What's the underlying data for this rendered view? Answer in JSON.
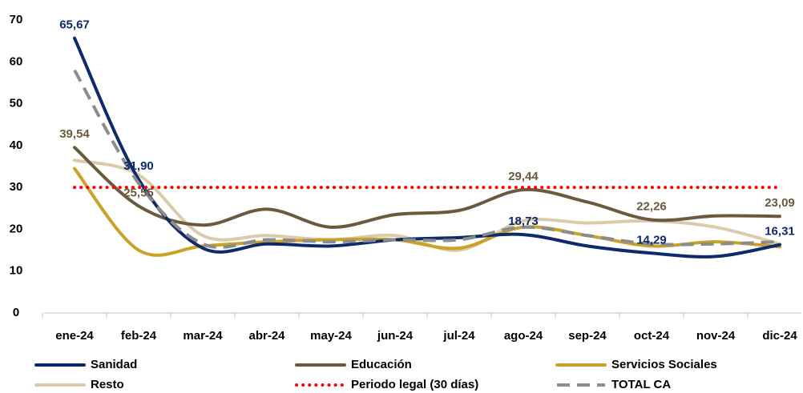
{
  "chart_data": {
    "type": "line",
    "categories": [
      "ene-24",
      "feb-24",
      "mar-24",
      "abr-24",
      "may-24",
      "jun-24",
      "jul-24",
      "ago-24",
      "sep-24",
      "oct-24",
      "nov-24",
      "dic-24"
    ],
    "ylim": [
      0,
      70
    ],
    "yticks": [
      0,
      10,
      20,
      30,
      40,
      50,
      60,
      70
    ],
    "series": [
      {
        "name": "Sanidad",
        "color": "#0e2a6a",
        "line_style": "solid",
        "values": [
          65.67,
          31.9,
          15.5,
          16.5,
          16,
          17.5,
          18,
          18.73,
          16,
          14.29,
          13.5,
          16.31
        ],
        "value_labels": [
          "65,67",
          "31,90",
          null,
          null,
          null,
          null,
          null,
          "18,73",
          null,
          "14,29",
          null,
          "16,31"
        ]
      },
      {
        "name": "Educación",
        "color": "#6b5a3e",
        "line_style": "solid",
        "values": [
          39.54,
          25.55,
          21,
          24.8,
          20.5,
          23.5,
          24.5,
          29.44,
          26.5,
          22.26,
          23.2,
          23.09
        ],
        "value_labels": [
          "39,54",
          "25,55",
          null,
          null,
          null,
          null,
          null,
          "29,44",
          null,
          "22,26",
          null,
          "23,09"
        ]
      },
      {
        "name": "Servicios Sociales",
        "color": "#c9a227",
        "line_style": "solid",
        "values": [
          34.5,
          15,
          16,
          17,
          17.5,
          17.5,
          15.5,
          20.5,
          18.5,
          16,
          17,
          15.8
        ]
      },
      {
        "name": "Resto",
        "color": "#dccbaa",
        "line_style": "solid",
        "values": [
          36.5,
          33,
          18.5,
          18.5,
          17.5,
          18.5,
          15,
          22,
          21.5,
          22,
          20.5,
          16.5
        ]
      },
      {
        "name": "Periodo legal (30 días)",
        "color": "#ff0000",
        "line_style": "dotted",
        "values": [
          30,
          30,
          30,
          30,
          30,
          30,
          30,
          30,
          30,
          30,
          30,
          30
        ]
      },
      {
        "name": "TOTAL CA",
        "color": "#8c8c8c",
        "line_style": "dashed",
        "values": [
          58,
          31,
          16.5,
          17.5,
          17,
          17.5,
          17.5,
          20.5,
          18.5,
          16.5,
          16.5,
          17
        ]
      }
    ]
  }
}
